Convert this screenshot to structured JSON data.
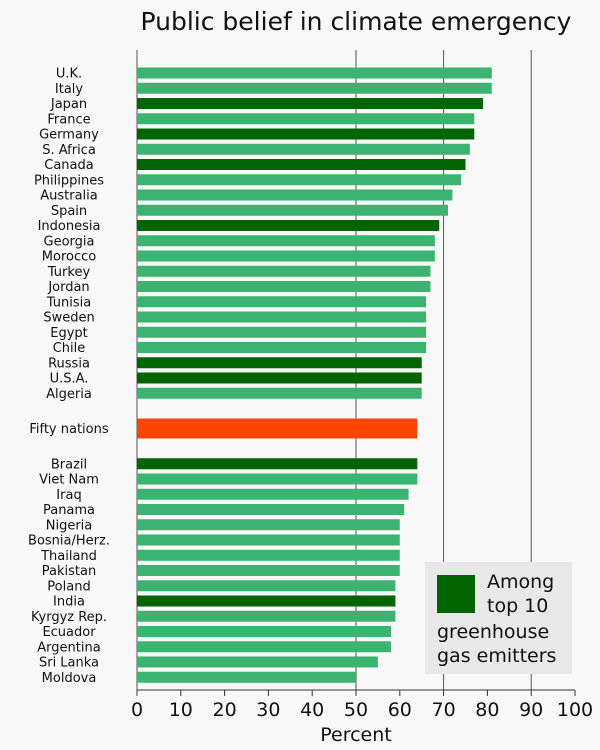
{
  "chart_data": {
    "type": "bar",
    "orientation": "horizontal",
    "title": "Public belief in climate emergency",
    "xlabel": "Percent",
    "ylabel": "",
    "xlim": [
      0,
      100
    ],
    "x_ticks": [
      0,
      10,
      20,
      30,
      40,
      50,
      60,
      70,
      80,
      90,
      100
    ],
    "grid": "vertical lines at 50, 70, 90",
    "categories": [
      "U.K.",
      "Italy",
      "Japan",
      "France",
      "Germany",
      "S. Africa",
      "Canada",
      "Philippines",
      "Australia",
      "Spain",
      "Indonesia",
      "Georgia",
      "Morocco",
      "Turkey",
      "Jordan",
      "Tunisia",
      "Sweden",
      "Egypt",
      "Chile",
      "Russia",
      "U.S.A.",
      "Algeria",
      "Fifty nations",
      "Brazil",
      "Viet Nam",
      "Iraq",
      "Panama",
      "Nigeria",
      "Bosnia/Herz.",
      "Thailand",
      "Pakistan",
      "Poland",
      "India",
      "Kyrgyz Rep.",
      "Ecuador",
      "Argentina",
      "Sri Lanka",
      "Moldova"
    ],
    "values": [
      81,
      81,
      79,
      77,
      77,
      76,
      75,
      74,
      72,
      71,
      69,
      68,
      68,
      67,
      67,
      66,
      66,
      66,
      66,
      65,
      65,
      65,
      64,
      64,
      64,
      62,
      61,
      60,
      60,
      60,
      60,
      59,
      59,
      59,
      58,
      58,
      55,
      50
    ],
    "groups": [
      "regular",
      "regular",
      "top10",
      "regular",
      "top10",
      "regular",
      "top10",
      "regular",
      "regular",
      "regular",
      "top10",
      "regular",
      "regular",
      "regular",
      "regular",
      "regular",
      "regular",
      "regular",
      "regular",
      "top10",
      "top10",
      "regular",
      "aggregate",
      "top10",
      "regular",
      "regular",
      "regular",
      "regular",
      "regular",
      "regular",
      "regular",
      "regular",
      "top10",
      "regular",
      "regular",
      "regular",
      "regular",
      "regular"
    ],
    "colors": {
      "regular": "#3cb371",
      "top10": "#006400",
      "aggregate": "#ff4500"
    },
    "legend": {
      "placement": "bottom-right",
      "lines": [
        "Among",
        "top 10",
        "greenhouse",
        "gas emitters"
      ],
      "color": "#006400"
    }
  }
}
